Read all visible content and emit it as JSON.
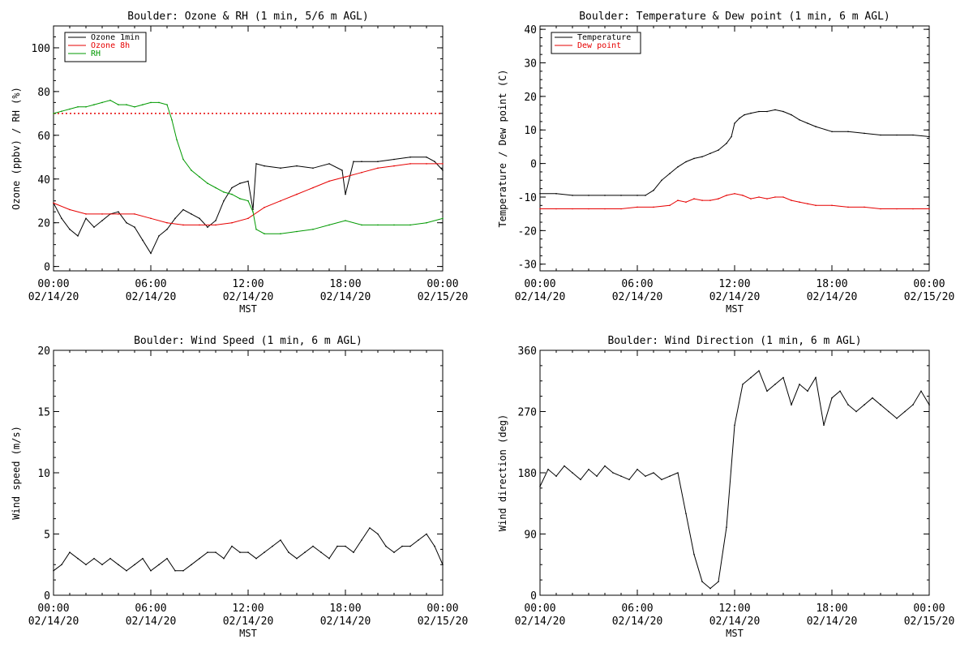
{
  "colors": {
    "ozone_1min": "#000000",
    "ozone_8h": "#e60000",
    "rh": "#009900",
    "temperature": "#000000",
    "dew_point": "#e60000",
    "wind": "#000000"
  },
  "chart_data": [
    {
      "type": "line",
      "title": "Boulder: Ozone & RH (1 min, 5/6 m AGL)",
      "xlabel": "MST",
      "ylabel": "Ozone (ppbv) / RH (%)",
      "xticks": [
        {
          "top": "00:00",
          "bottom": "02/14/20"
        },
        {
          "top": "06:00",
          "bottom": "02/14/20"
        },
        {
          "top": "12:00",
          "bottom": "02/14/20"
        },
        {
          "top": "18:00",
          "bottom": "02/14/20"
        },
        {
          "top": "00:00",
          "bottom": "02/15/20"
        }
      ],
      "xlim": [
        0,
        24
      ],
      "ylim": [
        -2,
        110
      ],
      "yticks": [
        0,
        20,
        40,
        60,
        80,
        100
      ],
      "legend": "top-left",
      "reference_line": {
        "y": 70,
        "color_key": "ozone_8h",
        "style": "dotted"
      },
      "series": [
        {
          "name": "Ozone 1min",
          "color_key": "ozone_1min",
          "x": [
            0,
            0.5,
            1,
            1.5,
            2,
            2.5,
            3,
            3.5,
            4,
            4.5,
            5,
            5.5,
            6,
            6.5,
            7,
            7.5,
            8,
            8.5,
            9,
            9.5,
            10,
            10.5,
            11,
            11.5,
            12,
            12.3,
            12.5,
            13,
            14,
            15,
            16,
            17,
            17.8,
            18,
            18.5,
            19,
            20,
            21,
            22,
            23,
            23.5,
            24
          ],
          "y": [
            29,
            22,
            17,
            14,
            22,
            18,
            21,
            24,
            25,
            20,
            18,
            12,
            6,
            14,
            17,
            22,
            26,
            24,
            22,
            18,
            21,
            30,
            36,
            38,
            39,
            26,
            47,
            46,
            45,
            46,
            45,
            47,
            44,
            33,
            48,
            48,
            48,
            49,
            50,
            50,
            48,
            44
          ]
        },
        {
          "name": "Ozone 8h",
          "color_key": "ozone_8h",
          "x": [
            0,
            1,
            2,
            3,
            4,
            5,
            6,
            7,
            8,
            9,
            10,
            11,
            12,
            13,
            14,
            15,
            16,
            17,
            18,
            19,
            20,
            21,
            22,
            23,
            24
          ],
          "y": [
            29,
            26,
            24,
            24,
            24,
            24,
            22,
            20,
            19,
            19,
            19,
            20,
            22,
            27,
            30,
            33,
            36,
            39,
            41,
            43,
            45,
            46,
            47,
            47,
            47
          ]
        },
        {
          "name": "RH",
          "color_key": "rh",
          "x": [
            0,
            0.5,
            1,
            1.5,
            2,
            2.5,
            3,
            3.5,
            4,
            4.5,
            5,
            5.5,
            6,
            6.5,
            7,
            7.3,
            7.6,
            8,
            8.5,
            9,
            9.5,
            10,
            10.5,
            11,
            11.5,
            12,
            12.3,
            12.5,
            13,
            14,
            15,
            16,
            17,
            18,
            19,
            20,
            21,
            22,
            23,
            24
          ],
          "y": [
            70,
            71,
            72,
            73,
            73,
            74,
            75,
            76,
            74,
            74,
            73,
            74,
            75,
            75,
            74,
            67,
            58,
            49,
            44,
            41,
            38,
            36,
            34,
            33,
            31,
            30,
            25,
            17,
            15,
            15,
            16,
            17,
            19,
            21,
            19,
            19,
            19,
            19,
            20,
            22
          ]
        }
      ]
    },
    {
      "type": "line",
      "title": "Boulder: Temperature & Dew point (1 min, 6 m AGL)",
      "xlabel": "MST",
      "ylabel": "Temperature / Dew point (C)",
      "xticks": [
        {
          "top": "00:00",
          "bottom": "02/14/20"
        },
        {
          "top": "06:00",
          "bottom": "02/14/20"
        },
        {
          "top": "12:00",
          "bottom": "02/14/20"
        },
        {
          "top": "18:00",
          "bottom": "02/14/20"
        },
        {
          "top": "00:00",
          "bottom": "02/15/20"
        }
      ],
      "xlim": [
        0,
        24
      ],
      "ylim": [
        -32,
        41
      ],
      "yticks": [
        -30,
        -20,
        -10,
        0,
        10,
        20,
        30,
        40
      ],
      "legend": "top-left",
      "series": [
        {
          "name": "Temperature",
          "color_key": "temperature",
          "x": [
            0,
            1,
            2,
            3,
            4,
            5,
            6,
            6.5,
            7,
            7.5,
            8,
            8.5,
            9,
            9.5,
            10,
            10.5,
            11,
            11.5,
            11.8,
            12,
            12.3,
            12.6,
            13,
            13.5,
            14,
            14.5,
            15,
            15.5,
            16,
            16.5,
            17,
            18,
            19,
            20,
            21,
            22,
            23,
            24
          ],
          "y": [
            -9,
            -9,
            -9.5,
            -9.5,
            -9.5,
            -9.5,
            -9.5,
            -9.5,
            -8,
            -5,
            -3,
            -1,
            0.5,
            1.5,
            2,
            3,
            4,
            6,
            8,
            12,
            13.5,
            14.5,
            15,
            15.5,
            15.5,
            16,
            15.5,
            14.5,
            13,
            12,
            11,
            9.5,
            9.5,
            9,
            8.5,
            8.5,
            8.5,
            8
          ]
        },
        {
          "name": "Dew point",
          "color_key": "dew_point",
          "x": [
            0,
            1,
            2,
            3,
            4,
            5,
            6,
            7,
            8,
            8.5,
            9,
            9.5,
            10,
            10.5,
            11,
            11.5,
            12,
            12.5,
            13,
            13.5,
            14,
            14.5,
            15,
            15.5,
            16,
            16.5,
            17,
            18,
            19,
            20,
            21,
            22,
            23,
            24
          ],
          "y": [
            -13.5,
            -13.5,
            -13.5,
            -13.5,
            -13.5,
            -13.5,
            -13,
            -13,
            -12.5,
            -11,
            -11.5,
            -10.5,
            -11,
            -11,
            -10.5,
            -9.5,
            -9,
            -9.5,
            -10.5,
            -10,
            -10.5,
            -10,
            -10,
            -11,
            -11.5,
            -12,
            -12.5,
            -12.5,
            -13,
            -13,
            -13.5,
            -13.5,
            -13.5,
            -13.5
          ]
        }
      ]
    },
    {
      "type": "line",
      "title": "Boulder: Wind Speed (1 min, 6 m AGL)",
      "xlabel": "MST",
      "ylabel": "Wind speed (m/s)",
      "xticks": [
        {
          "top": "00:00",
          "bottom": "02/14/20"
        },
        {
          "top": "06:00",
          "bottom": "02/14/20"
        },
        {
          "top": "12:00",
          "bottom": "02/14/20"
        },
        {
          "top": "18:00",
          "bottom": "02/14/20"
        },
        {
          "top": "00:00",
          "bottom": "02/15/20"
        }
      ],
      "xlim": [
        0,
        24
      ],
      "ylim": [
        0,
        20
      ],
      "yticks": [
        0,
        5,
        10,
        15,
        20
      ],
      "series": [
        {
          "name": "",
          "color_key": "wind",
          "x": [
            0,
            0.5,
            1,
            1.5,
            2,
            2.5,
            3,
            3.5,
            4,
            4.5,
            5,
            5.5,
            6,
            6.5,
            7,
            7.5,
            8,
            8.5,
            9,
            9.5,
            10,
            10.5,
            11,
            11.5,
            12,
            12.5,
            13,
            13.5,
            14,
            14.5,
            15,
            15.5,
            16,
            16.5,
            17,
            17.5,
            18,
            18.5,
            19,
            19.5,
            20,
            20.5,
            21,
            21.5,
            22,
            22.5,
            23,
            23.5,
            24
          ],
          "y": [
            2,
            2.5,
            3.5,
            3,
            2.5,
            3,
            2.5,
            3,
            2.5,
            2,
            2.5,
            3,
            2,
            2.5,
            3,
            2,
            2,
            2.5,
            3,
            3.5,
            3.5,
            3,
            4,
            3.5,
            3.5,
            3,
            3.5,
            4,
            4.5,
            3.5,
            3,
            3.5,
            4,
            3.5,
            3,
            4,
            4,
            3.5,
            4.5,
            5.5,
            5,
            4,
            3.5,
            4,
            4,
            4.5,
            5,
            4,
            2.5
          ]
        }
      ]
    },
    {
      "type": "line",
      "title": "Boulder: Wind Direction (1 min, 6 m AGL)",
      "xlabel": "MST",
      "ylabel": "Wind direction (deg)",
      "xticks": [
        {
          "top": "00:00",
          "bottom": "02/14/20"
        },
        {
          "top": "06:00",
          "bottom": "02/14/20"
        },
        {
          "top": "12:00",
          "bottom": "02/14/20"
        },
        {
          "top": "18:00",
          "bottom": "02/14/20"
        },
        {
          "top": "00:00",
          "bottom": "02/15/20"
        }
      ],
      "xlim": [
        0,
        24
      ],
      "ylim": [
        0,
        360
      ],
      "yticks": [
        0,
        90,
        180,
        270,
        360
      ],
      "series": [
        {
          "name": "",
          "color_key": "wind",
          "x": [
            0,
            0.5,
            1,
            1.5,
            2,
            2.5,
            3,
            3.5,
            4,
            4.5,
            5,
            5.5,
            6,
            6.5,
            7,
            7.5,
            8,
            8.5,
            9,
            9.5,
            10,
            10.5,
            11,
            11.5,
            12,
            12.5,
            13,
            13.5,
            14,
            14.5,
            15,
            15.5,
            16,
            16.5,
            17,
            17.5,
            18,
            18.5,
            19,
            19.5,
            20,
            20.5,
            21,
            21.5,
            22,
            22.5,
            23,
            23.5,
            24
          ],
          "y": [
            160,
            185,
            175,
            190,
            180,
            170,
            185,
            175,
            190,
            180,
            175,
            170,
            185,
            175,
            180,
            170,
            175,
            180,
            120,
            60,
            20,
            10,
            20,
            100,
            250,
            310,
            320,
            330,
            300,
            310,
            320,
            280,
            310,
            300,
            320,
            250,
            290,
            300,
            280,
            270,
            280,
            290,
            280,
            270,
            260,
            270,
            280,
            300,
            280
          ]
        }
      ]
    }
  ]
}
